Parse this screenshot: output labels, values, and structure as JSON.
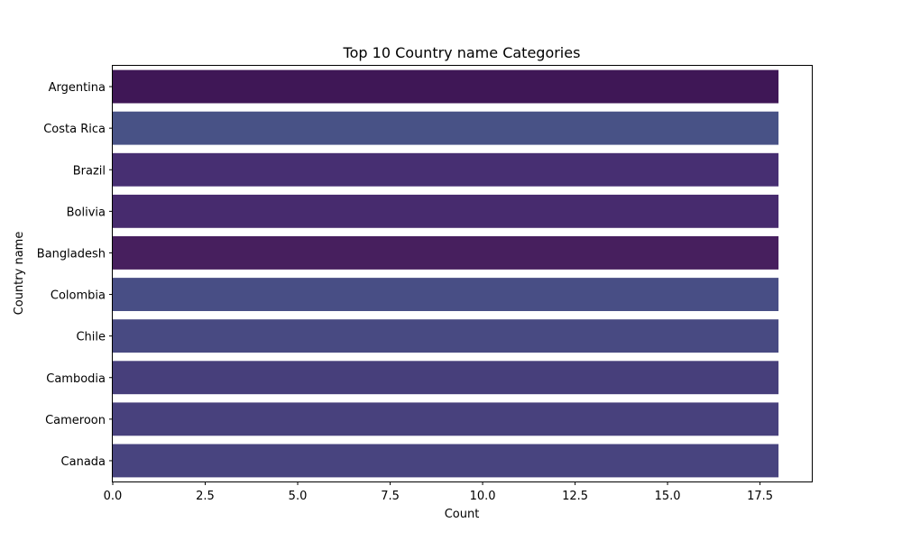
{
  "chart_data": {
    "type": "bar",
    "orientation": "horizontal",
    "title": "Top 10 Country name Categories",
    "xlabel": "Count",
    "ylabel": "Country name",
    "categories": [
      "Argentina",
      "Costa Rica",
      "Brazil",
      "Bolivia",
      "Bangladesh",
      "Colombia",
      "Chile",
      "Cambodia",
      "Cameroon",
      "Canada"
    ],
    "values": [
      18,
      18,
      18,
      18,
      18,
      18,
      18,
      18,
      18,
      18
    ],
    "colors": [
      "#3f1756",
      "#485286",
      "#472f72",
      "#472b6e",
      "#471f5e",
      "#484e85",
      "#484a82",
      "#473f7b",
      "#48417d",
      "#48447f"
    ],
    "xlim": [
      0,
      18.9
    ],
    "xticks": [
      "0.0",
      "2.5",
      "5.0",
      "7.5",
      "10.0",
      "12.5",
      "15.0",
      "17.5"
    ],
    "xtick_values": [
      0,
      2.5,
      5,
      7.5,
      10,
      12.5,
      15,
      17.5
    ],
    "grid": false,
    "legend": "none"
  }
}
